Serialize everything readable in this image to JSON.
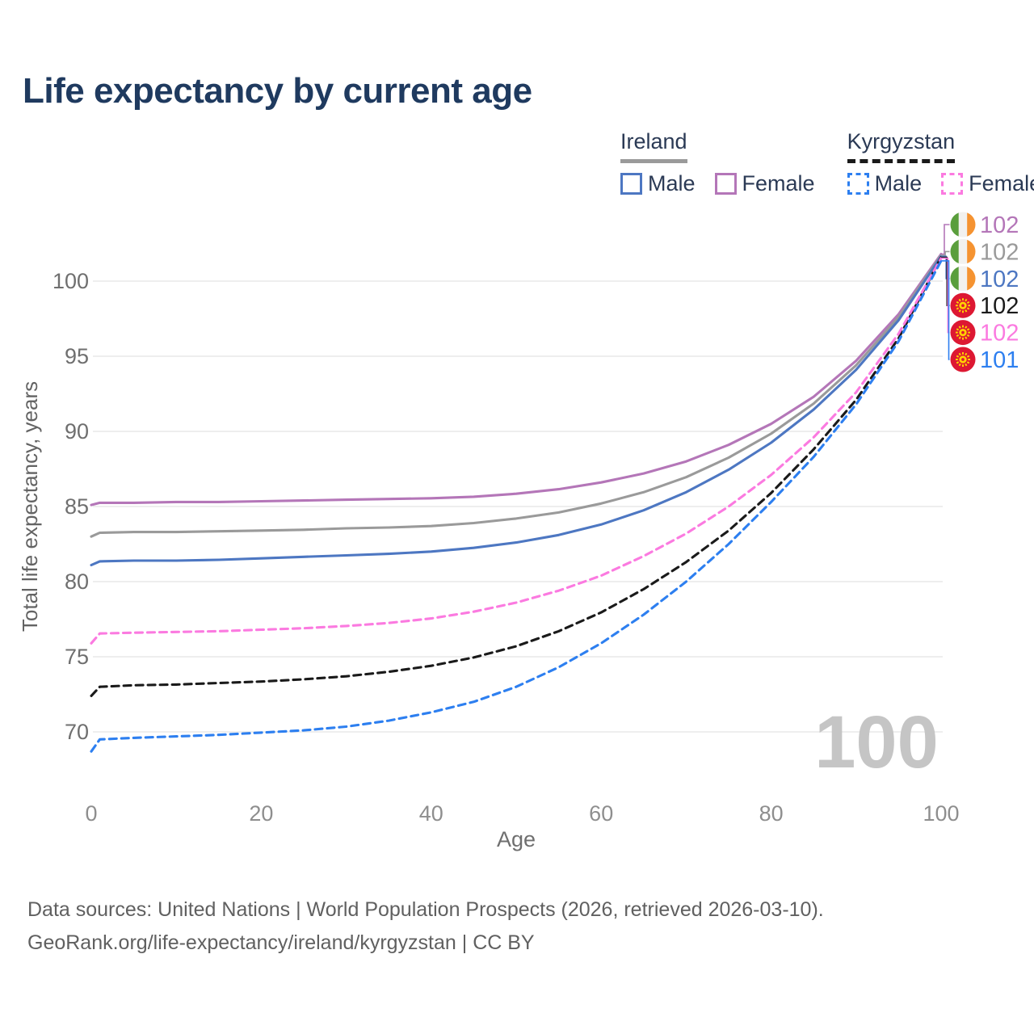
{
  "page": {
    "title": "Life expectancy by current age"
  },
  "legend": {
    "groups": [
      {
        "country": "Ireland",
        "line_style": "solid",
        "line_color": "#9a9a9a",
        "items": [
          {
            "label": "Male",
            "color": "#4d77c2",
            "style": "solid"
          },
          {
            "label": "Female",
            "color": "#b476b8",
            "style": "solid"
          }
        ]
      },
      {
        "country": "Kyrgyzstan",
        "line_style": "dashed",
        "line_color": "#1a1a1a",
        "items": [
          {
            "label": "Male",
            "color": "#2d7ff0",
            "style": "dashed"
          },
          {
            "label": "Female",
            "color": "#fb7ae0",
            "style": "dashed"
          }
        ]
      }
    ]
  },
  "chart_data": {
    "type": "line",
    "title": "Life expectancy by current age",
    "xlabel": "Age",
    "ylabel": "Total life expectancy, years",
    "xlim": [
      0,
      100
    ],
    "ylim": [
      67.5,
      103
    ],
    "x_ticks": [
      0,
      20,
      40,
      60,
      80,
      100
    ],
    "y_ticks": [
      70,
      75,
      80,
      85,
      90,
      95,
      100
    ],
    "grid": "horizontal",
    "legend_position": "top-right",
    "age_counter": "100",
    "watermark_color": "#c5c5c5",
    "series": [
      {
        "name": "Ireland Female",
        "country": "Ireland",
        "sex": "Female",
        "color": "#b476b8",
        "dash": "solid",
        "flag": "ireland",
        "end_label": "102",
        "end_label_color": "#b476b8",
        "points": [
          [
            0,
            85.1
          ],
          [
            1,
            85.25
          ],
          [
            5,
            85.25
          ],
          [
            10,
            85.3
          ],
          [
            15,
            85.3
          ],
          [
            20,
            85.35
          ],
          [
            25,
            85.4
          ],
          [
            30,
            85.45
          ],
          [
            35,
            85.5
          ],
          [
            40,
            85.55
          ],
          [
            45,
            85.65
          ],
          [
            50,
            85.85
          ],
          [
            55,
            86.15
          ],
          [
            60,
            86.6
          ],
          [
            65,
            87.2
          ],
          [
            70,
            88.0
          ],
          [
            75,
            89.1
          ],
          [
            80,
            90.5
          ],
          [
            85,
            92.3
          ],
          [
            90,
            94.7
          ],
          [
            95,
            97.8
          ],
          [
            100,
            101.8
          ]
        ]
      },
      {
        "name": "Ireland",
        "country": "Ireland",
        "sex": "All",
        "color": "#9a9a9a",
        "dash": "solid",
        "flag": "ireland",
        "end_label": "102",
        "end_label_color": "#9a9a9a",
        "points": [
          [
            0,
            83.0
          ],
          [
            1,
            83.25
          ],
          [
            5,
            83.3
          ],
          [
            10,
            83.3
          ],
          [
            15,
            83.35
          ],
          [
            20,
            83.4
          ],
          [
            25,
            83.45
          ],
          [
            30,
            83.55
          ],
          [
            35,
            83.6
          ],
          [
            40,
            83.7
          ],
          [
            45,
            83.9
          ],
          [
            50,
            84.2
          ],
          [
            55,
            84.6
          ],
          [
            60,
            85.2
          ],
          [
            65,
            85.95
          ],
          [
            70,
            86.95
          ],
          [
            75,
            88.25
          ],
          [
            80,
            89.85
          ],
          [
            85,
            91.85
          ],
          [
            90,
            94.4
          ],
          [
            95,
            97.6
          ],
          [
            100,
            101.72
          ]
        ]
      },
      {
        "name": "Ireland Male",
        "country": "Ireland",
        "sex": "Male",
        "color": "#4d77c2",
        "dash": "solid",
        "flag": "ireland",
        "end_label": "102",
        "end_label_color": "#4d77c2",
        "points": [
          [
            0,
            81.1
          ],
          [
            1,
            81.35
          ],
          [
            5,
            81.4
          ],
          [
            10,
            81.4
          ],
          [
            15,
            81.45
          ],
          [
            20,
            81.55
          ],
          [
            25,
            81.65
          ],
          [
            30,
            81.75
          ],
          [
            35,
            81.85
          ],
          [
            40,
            82.0
          ],
          [
            45,
            82.25
          ],
          [
            50,
            82.6
          ],
          [
            55,
            83.1
          ],
          [
            60,
            83.8
          ],
          [
            65,
            84.75
          ],
          [
            70,
            85.95
          ],
          [
            75,
            87.45
          ],
          [
            80,
            89.25
          ],
          [
            85,
            91.45
          ],
          [
            90,
            94.1
          ],
          [
            95,
            97.4
          ],
          [
            100,
            101.65
          ]
        ]
      },
      {
        "name": "Kyrgyzstan",
        "country": "Kyrgyzstan",
        "sex": "All",
        "color": "#1a1a1a",
        "dash": "dashed",
        "flag": "kyrgyzstan",
        "end_label": "102",
        "end_label_color": "#1a1a1a",
        "points": [
          [
            0,
            72.4
          ],
          [
            1,
            73.0
          ],
          [
            5,
            73.1
          ],
          [
            10,
            73.15
          ],
          [
            15,
            73.25
          ],
          [
            20,
            73.35
          ],
          [
            25,
            73.5
          ],
          [
            30,
            73.7
          ],
          [
            35,
            74.0
          ],
          [
            40,
            74.4
          ],
          [
            45,
            74.95
          ],
          [
            50,
            75.7
          ],
          [
            55,
            76.7
          ],
          [
            60,
            77.95
          ],
          [
            65,
            79.5
          ],
          [
            70,
            81.3
          ],
          [
            75,
            83.4
          ],
          [
            80,
            85.9
          ],
          [
            85,
            88.8
          ],
          [
            90,
            92.1
          ],
          [
            95,
            96.2
          ],
          [
            100,
            101.58
          ]
        ]
      },
      {
        "name": "Kyrgyzstan Female",
        "country": "Kyrgyzstan",
        "sex": "Female",
        "color": "#fb7ae0",
        "dash": "dashed",
        "flag": "kyrgyzstan",
        "end_label": "102",
        "end_label_color": "#fb7ae0",
        "points": [
          [
            0,
            75.9
          ],
          [
            1,
            76.55
          ],
          [
            5,
            76.6
          ],
          [
            10,
            76.65
          ],
          [
            15,
            76.7
          ],
          [
            20,
            76.8
          ],
          [
            25,
            76.9
          ],
          [
            30,
            77.05
          ],
          [
            35,
            77.25
          ],
          [
            40,
            77.55
          ],
          [
            45,
            78.0
          ],
          [
            50,
            78.6
          ],
          [
            55,
            79.4
          ],
          [
            60,
            80.4
          ],
          [
            65,
            81.7
          ],
          [
            70,
            83.2
          ],
          [
            75,
            85.0
          ],
          [
            80,
            87.1
          ],
          [
            85,
            89.6
          ],
          [
            90,
            92.6
          ],
          [
            95,
            96.5
          ],
          [
            100,
            101.52
          ]
        ]
      },
      {
        "name": "Kyrgyzstan Male",
        "country": "Kyrgyzstan",
        "sex": "Male",
        "color": "#2d7ff0",
        "dash": "dashed",
        "flag": "kyrgyzstan",
        "end_label": "101",
        "end_label_color": "#2d7ff0",
        "points": [
          [
            0,
            68.7
          ],
          [
            1,
            69.5
          ],
          [
            5,
            69.6
          ],
          [
            10,
            69.7
          ],
          [
            15,
            69.8
          ],
          [
            20,
            69.95
          ],
          [
            25,
            70.1
          ],
          [
            30,
            70.35
          ],
          [
            35,
            70.75
          ],
          [
            40,
            71.3
          ],
          [
            45,
            72.0
          ],
          [
            50,
            73.0
          ],
          [
            55,
            74.3
          ],
          [
            60,
            75.9
          ],
          [
            65,
            77.8
          ],
          [
            70,
            80.0
          ],
          [
            75,
            82.5
          ],
          [
            80,
            85.3
          ],
          [
            85,
            88.3
          ],
          [
            90,
            91.8
          ],
          [
            95,
            96.0
          ],
          [
            100,
            101.35
          ]
        ]
      }
    ]
  },
  "footer": {
    "line1": "Data sources: United Nations | World Population Prospects (2026, retrieved 2026-03-10).",
    "line2": "GeoRank.org/life-expectancy/ireland/kyrgyzstan | CC BY"
  }
}
